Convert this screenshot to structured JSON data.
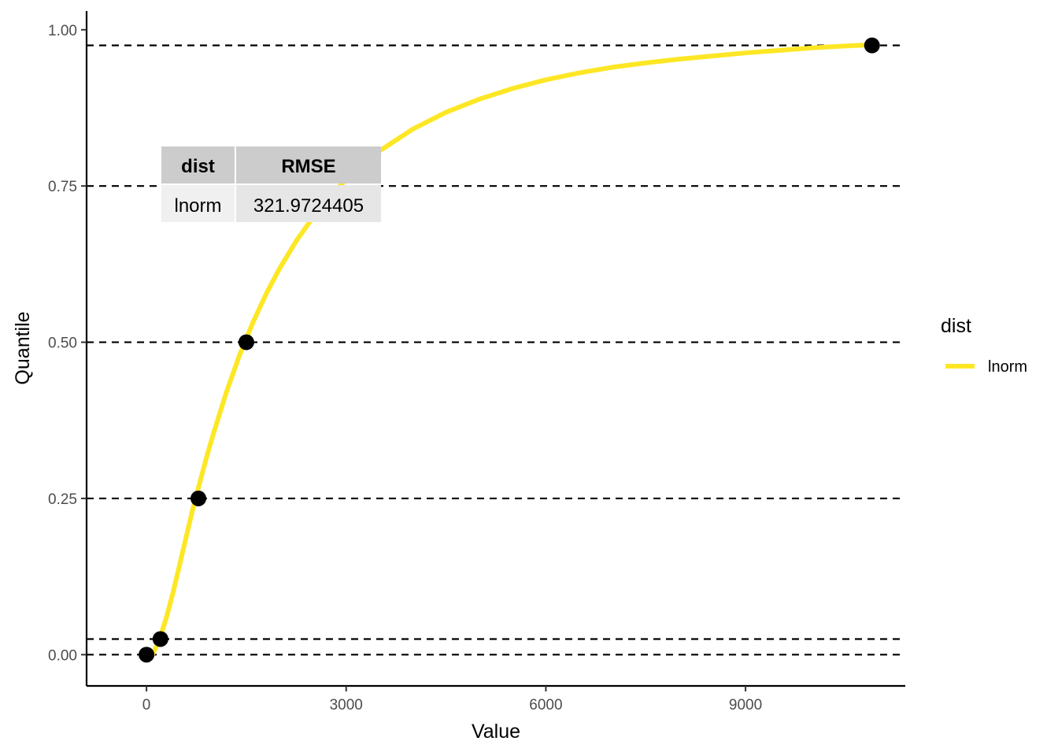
{
  "chart_data": {
    "type": "line",
    "xlabel": "Value",
    "ylabel": "Quantile",
    "xlim": [
      -900,
      11400
    ],
    "ylim": [
      -0.05,
      1.03
    ],
    "x_ticks": [
      0,
      3000,
      6000,
      9000
    ],
    "x_tick_labels": [
      "0",
      "3000",
      "6000",
      "9000"
    ],
    "y_ticks": [
      0,
      0.25,
      0.5,
      0.75,
      1.0
    ],
    "y_tick_labels": [
      "0.00",
      "0.25",
      "0.50",
      "0.75",
      "1.00"
    ],
    "grid": false,
    "reference_lines_y": [
      0,
      0.025,
      0.25,
      0.5,
      0.75,
      0.975
    ],
    "series": [
      {
        "name": "lnorm",
        "color": "#FDE725",
        "x": [
          0,
          100,
          200,
          300,
          400,
          500,
          600,
          700,
          800,
          900,
          1000,
          1200,
          1400,
          1600,
          1800,
          2000,
          2250,
          2500,
          2750,
          3000,
          3500,
          4000,
          4500,
          5000,
          5500,
          6000,
          6500,
          7000,
          7500,
          8000,
          8500,
          9000,
          9500,
          10000,
          10500,
          10900
        ],
        "y": [
          0,
          0.002,
          0.026,
          0.06,
          0.1,
          0.145,
          0.19,
          0.235,
          0.275,
          0.315,
          0.352,
          0.42,
          0.48,
          0.532,
          0.578,
          0.618,
          0.662,
          0.7,
          0.733,
          0.761,
          0.806,
          0.841,
          0.868,
          0.889,
          0.906,
          0.92,
          0.931,
          0.94,
          0.947,
          0.953,
          0.958,
          0.963,
          0.967,
          0.971,
          0.974,
          0.976
        ]
      }
    ],
    "points": {
      "color": "#000000",
      "x": [
        0,
        210,
        780,
        1500,
        10900
      ],
      "y": [
        0,
        0.025,
        0.25,
        0.5,
        0.975
      ]
    },
    "legend": {
      "title": "dist",
      "placement": "right",
      "entries": [
        {
          "label": "lnorm",
          "color": "#FDE725"
        }
      ]
    },
    "annotation_table": {
      "headers": [
        "dist",
        "RMSE"
      ],
      "rows": [
        [
          "lnorm",
          "321.9724405"
        ]
      ],
      "header_fill": "#cccccc",
      "cell_fills": [
        "#f0f0f0",
        "#e6e6e6"
      ]
    }
  }
}
